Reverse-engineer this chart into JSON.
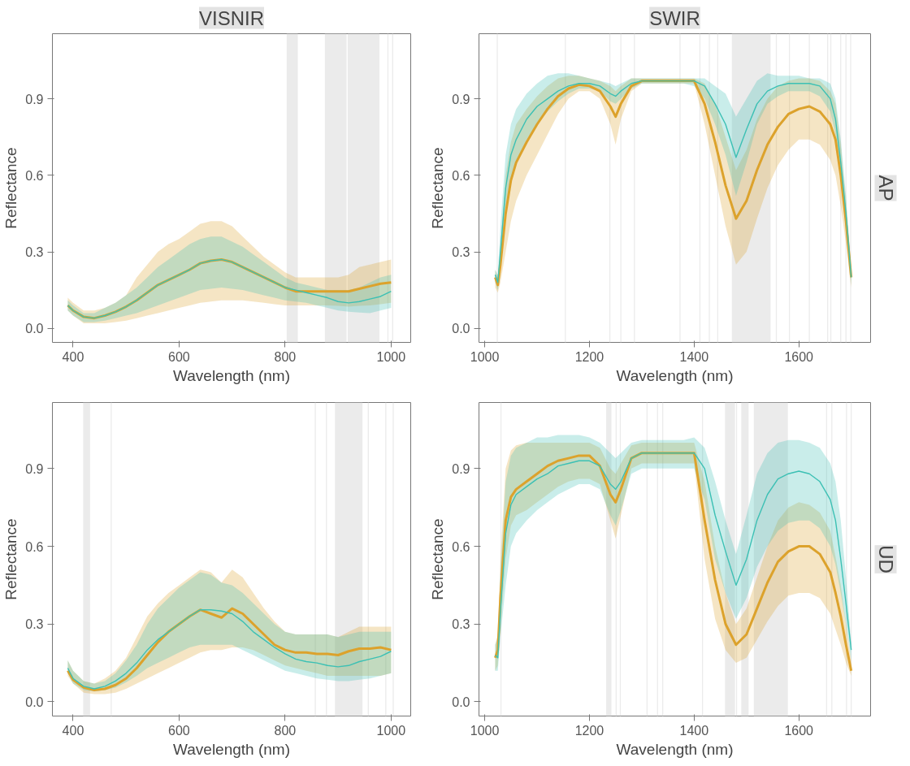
{
  "chart_data": [
    {
      "type": "line",
      "title": "VISNIR",
      "xlabel": "Wavelength (nm)",
      "ylabel": "Reflectance",
      "xlim": [
        361,
        1037
      ],
      "ylim": [
        -0.055,
        1.155
      ],
      "xticks": [
        400,
        600,
        800,
        1000
      ],
      "yticks": [
        {
          "value": 0,
          "label": "0.0"
        },
        {
          "value": 0.3,
          "label": "0.3"
        },
        {
          "value": 0.6,
          "label": "0.6"
        },
        {
          "value": 0.9,
          "label": "0.9"
        }
      ],
      "x": [
        390,
        400,
        420,
        440,
        460,
        480,
        500,
        520,
        540,
        560,
        580,
        600,
        620,
        640,
        660,
        680,
        700,
        720,
        740,
        760,
        780,
        800,
        820,
        840,
        860,
        880,
        900,
        920,
        940,
        960,
        980,
        1000
      ],
      "series": [
        {
          "color": "#dca22c",
          "values": [
            0.09,
            0.07,
            0.045,
            0.04,
            0.05,
            0.065,
            0.085,
            0.11,
            0.14,
            0.17,
            0.19,
            0.21,
            0.23,
            0.255,
            0.265,
            0.27,
            0.26,
            0.24,
            0.22,
            0.2,
            0.18,
            0.16,
            0.145,
            0.145,
            0.145,
            0.145,
            0.145,
            0.145,
            0.155,
            0.165,
            0.175,
            0.18
          ],
          "lower": [
            0.07,
            0.05,
            0.02,
            0.02,
            0.02,
            0.025,
            0.03,
            0.04,
            0.05,
            0.06,
            0.07,
            0.08,
            0.09,
            0.1,
            0.105,
            0.11,
            0.11,
            0.11,
            0.105,
            0.1,
            0.095,
            0.09,
            0.09,
            0.09,
            0.09,
            0.09,
            0.088,
            0.085,
            0.088,
            0.09,
            0.095,
            0.1
          ],
          "upper": [
            0.12,
            0.1,
            0.07,
            0.07,
            0.08,
            0.1,
            0.13,
            0.2,
            0.25,
            0.3,
            0.33,
            0.35,
            0.38,
            0.41,
            0.42,
            0.42,
            0.4,
            0.36,
            0.32,
            0.28,
            0.25,
            0.22,
            0.2,
            0.2,
            0.2,
            0.2,
            0.2,
            0.21,
            0.24,
            0.25,
            0.26,
            0.27
          ]
        },
        {
          "color": "#3cc0b4",
          "values": [
            0.09,
            0.07,
            0.045,
            0.04,
            0.05,
            0.065,
            0.085,
            0.11,
            0.14,
            0.17,
            0.19,
            0.21,
            0.23,
            0.255,
            0.265,
            0.27,
            0.26,
            0.24,
            0.22,
            0.2,
            0.18,
            0.16,
            0.15,
            0.14,
            0.13,
            0.12,
            0.105,
            0.1,
            0.105,
            0.115,
            0.125,
            0.145
          ],
          "lower": [
            0.07,
            0.05,
            0.025,
            0.025,
            0.03,
            0.04,
            0.05,
            0.06,
            0.075,
            0.09,
            0.105,
            0.12,
            0.135,
            0.15,
            0.155,
            0.16,
            0.155,
            0.15,
            0.14,
            0.13,
            0.12,
            0.11,
            0.105,
            0.1,
            0.09,
            0.08,
            0.07,
            0.065,
            0.062,
            0.06,
            0.07,
            0.08
          ],
          "upper": [
            0.11,
            0.09,
            0.06,
            0.06,
            0.08,
            0.1,
            0.13,
            0.16,
            0.2,
            0.24,
            0.27,
            0.3,
            0.33,
            0.35,
            0.36,
            0.36,
            0.34,
            0.32,
            0.29,
            0.26,
            0.23,
            0.2,
            0.18,
            0.17,
            0.16,
            0.15,
            0.15,
            0.15,
            0.16,
            0.18,
            0.2,
            0.21
          ]
        }
      ],
      "bands": [
        {
          "axis": "x",
          "from": 803,
          "to": 824
        },
        {
          "axis": "x",
          "from": 875,
          "to": 916
        },
        {
          "axis": "x",
          "from": 918,
          "to": 978
        },
        {
          "axis": "x",
          "from": 993,
          "to": 995
        },
        {
          "axis": "x",
          "from": 1002,
          "to": 1004
        }
      ]
    },
    {
      "type": "line",
      "title": "SWIR",
      "annotations": [
        "AP"
      ],
      "xlabel": "Wavelength (nm)",
      "ylabel": "Reflectance",
      "xlim": [
        989,
        1737
      ],
      "ylim": [
        -0.055,
        1.155
      ],
      "xticks": [
        1000,
        1200,
        1400,
        1600
      ],
      "yticks": [
        {
          "value": 0,
          "label": "0.0"
        },
        {
          "value": 0.3,
          "label": "0.3"
        },
        {
          "value": 0.6,
          "label": "0.6"
        },
        {
          "value": 0.9,
          "label": "0.9"
        }
      ],
      "x": [
        1020,
        1025,
        1030,
        1040,
        1050,
        1060,
        1080,
        1100,
        1120,
        1140,
        1160,
        1180,
        1200,
        1220,
        1240,
        1250,
        1260,
        1280,
        1300,
        1340,
        1380,
        1400,
        1420,
        1440,
        1460,
        1480,
        1500,
        1520,
        1540,
        1560,
        1580,
        1600,
        1620,
        1640,
        1660,
        1670,
        1680,
        1690,
        1700
      ],
      "series": [
        {
          "color": "#dca22c",
          "values": [
            0.2,
            0.17,
            0.25,
            0.45,
            0.58,
            0.65,
            0.73,
            0.8,
            0.86,
            0.91,
            0.94,
            0.955,
            0.95,
            0.93,
            0.87,
            0.83,
            0.88,
            0.95,
            0.97,
            0.97,
            0.97,
            0.97,
            0.88,
            0.73,
            0.56,
            0.43,
            0.5,
            0.62,
            0.72,
            0.79,
            0.84,
            0.86,
            0.87,
            0.85,
            0.8,
            0.74,
            0.6,
            0.42,
            0.2
          ],
          "lower": [
            0.16,
            0.14,
            0.18,
            0.3,
            0.42,
            0.5,
            0.6,
            0.68,
            0.76,
            0.84,
            0.9,
            0.93,
            0.93,
            0.9,
            0.8,
            0.72,
            0.82,
            0.93,
            0.96,
            0.96,
            0.96,
            0.96,
            0.8,
            0.6,
            0.4,
            0.25,
            0.3,
            0.43,
            0.55,
            0.64,
            0.7,
            0.74,
            0.74,
            0.72,
            0.66,
            0.6,
            0.48,
            0.33,
            0.16
          ],
          "upper": [
            0.23,
            0.2,
            0.32,
            0.6,
            0.73,
            0.8,
            0.86,
            0.91,
            0.95,
            0.98,
            0.99,
            0.99,
            0.98,
            0.97,
            0.95,
            0.93,
            0.95,
            0.98,
            0.98,
            0.98,
            0.98,
            0.98,
            0.96,
            0.88,
            0.75,
            0.62,
            0.7,
            0.82,
            0.9,
            0.95,
            0.97,
            0.98,
            0.98,
            0.97,
            0.93,
            0.88,
            0.72,
            0.5,
            0.23
          ]
        },
        {
          "color": "#3cc0b4",
          "values": [
            0.21,
            0.18,
            0.3,
            0.55,
            0.68,
            0.74,
            0.82,
            0.87,
            0.9,
            0.93,
            0.95,
            0.96,
            0.96,
            0.95,
            0.92,
            0.91,
            0.93,
            0.96,
            0.97,
            0.97,
            0.97,
            0.97,
            0.95,
            0.88,
            0.8,
            0.67,
            0.78,
            0.88,
            0.93,
            0.95,
            0.96,
            0.96,
            0.96,
            0.95,
            0.9,
            0.82,
            0.65,
            0.45,
            0.2
          ],
          "lower": [
            0.18,
            0.15,
            0.22,
            0.45,
            0.58,
            0.65,
            0.74,
            0.8,
            0.85,
            0.89,
            0.92,
            0.94,
            0.94,
            0.93,
            0.89,
            0.88,
            0.9,
            0.94,
            0.96,
            0.96,
            0.96,
            0.95,
            0.9,
            0.8,
            0.68,
            0.52,
            0.65,
            0.8,
            0.88,
            0.91,
            0.93,
            0.93,
            0.93,
            0.91,
            0.85,
            0.76,
            0.58,
            0.38,
            0.17
          ],
          "upper": [
            0.23,
            0.21,
            0.4,
            0.68,
            0.8,
            0.86,
            0.92,
            0.96,
            0.99,
            1.0,
            1.0,
            0.99,
            0.98,
            0.97,
            0.96,
            0.95,
            0.96,
            0.98,
            0.98,
            0.98,
            0.98,
            0.98,
            0.98,
            0.95,
            0.92,
            0.83,
            0.9,
            0.97,
            1.0,
            0.99,
            0.99,
            0.99,
            0.98,
            0.98,
            0.96,
            0.9,
            0.74,
            0.52,
            0.23
          ]
        }
      ],
      "bands": [
        {
          "axis": "x",
          "from": 1023,
          "to": 1025
        },
        {
          "axis": "x",
          "from": 1153,
          "to": 1155
        },
        {
          "axis": "x",
          "from": 1238,
          "to": 1240
        },
        {
          "axis": "x",
          "from": 1259,
          "to": 1261
        },
        {
          "axis": "x",
          "from": 1285,
          "to": 1287
        },
        {
          "axis": "x",
          "from": 1372,
          "to": 1374
        },
        {
          "axis": "x",
          "from": 1410,
          "to": 1412
        },
        {
          "axis": "x",
          "from": 1428,
          "to": 1430
        },
        {
          "axis": "x",
          "from": 1444,
          "to": 1446
        },
        {
          "axis": "x",
          "from": 1472,
          "to": 1546
        },
        {
          "axis": "x",
          "from": 1556,
          "to": 1558
        },
        {
          "axis": "x",
          "from": 1581,
          "to": 1583
        },
        {
          "axis": "x",
          "from": 1619,
          "to": 1621
        },
        {
          "axis": "x",
          "from": 1654,
          "to": 1656
        },
        {
          "axis": "x",
          "from": 1660,
          "to": 1662
        },
        {
          "axis": "x",
          "from": 1679,
          "to": 1681
        },
        {
          "axis": "x",
          "from": 1689,
          "to": 1691
        },
        {
          "axis": "x",
          "from": 1698,
          "to": 1700
        }
      ]
    },
    {
      "type": "line",
      "xlabel": "Wavelength (nm)",
      "ylabel": "Reflectance",
      "xlim": [
        361,
        1037
      ],
      "ylim": [
        -0.055,
        1.155
      ],
      "xticks": [
        400,
        600,
        800,
        1000
      ],
      "yticks": [
        {
          "value": 0,
          "label": "0.0"
        },
        {
          "value": 0.3,
          "label": "0.3"
        },
        {
          "value": 0.6,
          "label": "0.6"
        },
        {
          "value": 0.9,
          "label": "0.9"
        }
      ],
      "x": [
        390,
        400,
        420,
        440,
        460,
        480,
        500,
        520,
        540,
        560,
        580,
        600,
        620,
        640,
        660,
        680,
        700,
        720,
        740,
        760,
        780,
        800,
        820,
        840,
        860,
        880,
        900,
        920,
        940,
        960,
        980,
        1000
      ],
      "series": [
        {
          "color": "#dca22c",
          "values": [
            0.12,
            0.085,
            0.055,
            0.045,
            0.05,
            0.065,
            0.09,
            0.13,
            0.18,
            0.23,
            0.27,
            0.3,
            0.33,
            0.355,
            0.34,
            0.325,
            0.36,
            0.34,
            0.3,
            0.26,
            0.22,
            0.2,
            0.19,
            0.19,
            0.185,
            0.185,
            0.18,
            0.195,
            0.205,
            0.205,
            0.21,
            0.2
          ],
          "lower": [
            0.1,
            0.07,
            0.035,
            0.03,
            0.03,
            0.035,
            0.05,
            0.07,
            0.09,
            0.11,
            0.13,
            0.15,
            0.17,
            0.19,
            0.2,
            0.2,
            0.21,
            0.21,
            0.2,
            0.18,
            0.16,
            0.14,
            0.13,
            0.12,
            0.11,
            0.1,
            0.1,
            0.1,
            0.1,
            0.1,
            0.1,
            0.11
          ],
          "upper": [
            0.16,
            0.12,
            0.08,
            0.07,
            0.09,
            0.12,
            0.17,
            0.25,
            0.33,
            0.38,
            0.42,
            0.45,
            0.48,
            0.51,
            0.5,
            0.46,
            0.51,
            0.48,
            0.42,
            0.36,
            0.31,
            0.27,
            0.26,
            0.26,
            0.26,
            0.26,
            0.25,
            0.27,
            0.29,
            0.29,
            0.29,
            0.29
          ]
        },
        {
          "color": "#3cc0b4",
          "values": [
            0.13,
            0.09,
            0.06,
            0.05,
            0.06,
            0.08,
            0.11,
            0.15,
            0.2,
            0.24,
            0.27,
            0.3,
            0.33,
            0.355,
            0.355,
            0.35,
            0.34,
            0.31,
            0.27,
            0.24,
            0.21,
            0.185,
            0.165,
            0.155,
            0.15,
            0.14,
            0.135,
            0.14,
            0.155,
            0.165,
            0.175,
            0.195
          ],
          "lower": [
            0.11,
            0.07,
            0.045,
            0.04,
            0.045,
            0.055,
            0.075,
            0.1,
            0.13,
            0.15,
            0.17,
            0.19,
            0.21,
            0.22,
            0.22,
            0.22,
            0.22,
            0.2,
            0.18,
            0.16,
            0.14,
            0.12,
            0.11,
            0.1,
            0.09,
            0.085,
            0.08,
            0.08,
            0.085,
            0.09,
            0.1,
            0.11
          ],
          "upper": [
            0.16,
            0.12,
            0.08,
            0.07,
            0.08,
            0.11,
            0.16,
            0.22,
            0.3,
            0.36,
            0.4,
            0.44,
            0.47,
            0.5,
            0.49,
            0.46,
            0.45,
            0.42,
            0.38,
            0.34,
            0.3,
            0.27,
            0.26,
            0.26,
            0.26,
            0.26,
            0.25,
            0.26,
            0.27,
            0.27,
            0.27,
            0.27
          ]
        }
      ],
      "bands": [
        {
          "axis": "x",
          "from": 419,
          "to": 432
        },
        {
          "axis": "x",
          "from": 471,
          "to": 473
        },
        {
          "axis": "x",
          "from": 856,
          "to": 858
        },
        {
          "axis": "x",
          "from": 877,
          "to": 879
        },
        {
          "axis": "x",
          "from": 894,
          "to": 946
        },
        {
          "axis": "x",
          "from": 956,
          "to": 958
        },
        {
          "axis": "x",
          "from": 989,
          "to": 991
        },
        {
          "axis": "x",
          "from": 1003,
          "to": 1005
        }
      ]
    },
    {
      "type": "line",
      "annotations": [
        "UD"
      ],
      "xlabel": "Wavelength (nm)",
      "ylabel": "Reflectance",
      "xlim": [
        989,
        1737
      ],
      "ylim": [
        -0.055,
        1.155
      ],
      "xticks": [
        1000,
        1200,
        1400,
        1600
      ],
      "yticks": [
        {
          "value": 0,
          "label": "0.0"
        },
        {
          "value": 0.3,
          "label": "0.3"
        },
        {
          "value": 0.6,
          "label": "0.6"
        },
        {
          "value": 0.9,
          "label": "0.9"
        }
      ],
      "x": [
        1020,
        1025,
        1030,
        1040,
        1050,
        1060,
        1080,
        1100,
        1120,
        1140,
        1160,
        1180,
        1200,
        1220,
        1240,
        1250,
        1260,
        1280,
        1300,
        1340,
        1380,
        1400,
        1420,
        1440,
        1460,
        1480,
        1500,
        1520,
        1540,
        1560,
        1580,
        1600,
        1620,
        1640,
        1660,
        1670,
        1680,
        1690,
        1700
      ],
      "series": [
        {
          "color": "#dca22c",
          "values": [
            0.17,
            0.2,
            0.4,
            0.7,
            0.79,
            0.82,
            0.85,
            0.88,
            0.91,
            0.93,
            0.94,
            0.95,
            0.95,
            0.91,
            0.8,
            0.77,
            0.82,
            0.94,
            0.96,
            0.96,
            0.96,
            0.96,
            0.7,
            0.47,
            0.3,
            0.22,
            0.26,
            0.36,
            0.46,
            0.54,
            0.58,
            0.6,
            0.6,
            0.57,
            0.5,
            0.42,
            0.33,
            0.22,
            0.12
          ],
          "lower": [
            0.12,
            0.14,
            0.28,
            0.55,
            0.68,
            0.72,
            0.74,
            0.77,
            0.8,
            0.83,
            0.85,
            0.86,
            0.86,
            0.84,
            0.7,
            0.63,
            0.72,
            0.9,
            0.92,
            0.92,
            0.92,
            0.92,
            0.55,
            0.32,
            0.2,
            0.15,
            0.17,
            0.24,
            0.31,
            0.37,
            0.41,
            0.42,
            0.42,
            0.4,
            0.34,
            0.28,
            0.22,
            0.15,
            0.1
          ],
          "upper": [
            0.22,
            0.26,
            0.55,
            0.9,
            0.97,
            0.99,
            1.0,
            1.0,
            1.0,
            1.0,
            1.0,
            1.0,
            1.0,
            0.98,
            0.9,
            0.88,
            0.92,
            0.99,
            1.0,
            1.0,
            1.0,
            1.0,
            0.85,
            0.6,
            0.42,
            0.3,
            0.36,
            0.48,
            0.6,
            0.7,
            0.75,
            0.77,
            0.76,
            0.73,
            0.66,
            0.56,
            0.45,
            0.3,
            0.16
          ]
        },
        {
          "color": "#3cc0b4",
          "values": [
            0.18,
            0.17,
            0.35,
            0.65,
            0.76,
            0.8,
            0.83,
            0.86,
            0.88,
            0.91,
            0.92,
            0.93,
            0.93,
            0.91,
            0.84,
            0.82,
            0.85,
            0.94,
            0.96,
            0.96,
            0.96,
            0.96,
            0.9,
            0.72,
            0.58,
            0.45,
            0.55,
            0.7,
            0.8,
            0.86,
            0.88,
            0.89,
            0.88,
            0.85,
            0.78,
            0.7,
            0.55,
            0.38,
            0.2
          ],
          "lower": [
            0.12,
            0.12,
            0.25,
            0.45,
            0.6,
            0.65,
            0.7,
            0.74,
            0.77,
            0.8,
            0.82,
            0.84,
            0.84,
            0.82,
            0.72,
            0.68,
            0.74,
            0.88,
            0.9,
            0.9,
            0.9,
            0.9,
            0.78,
            0.55,
            0.42,
            0.32,
            0.4,
            0.52,
            0.6,
            0.66,
            0.69,
            0.7,
            0.7,
            0.67,
            0.6,
            0.53,
            0.42,
            0.3,
            0.16
          ],
          "upper": [
            0.22,
            0.25,
            0.5,
            0.85,
            0.95,
            0.98,
            1.0,
            1.02,
            1.02,
            1.03,
            1.03,
            1.03,
            1.02,
            1.0,
            0.96,
            0.94,
            0.96,
            1.0,
            1.01,
            1.01,
            1.01,
            1.02,
            0.98,
            0.85,
            0.7,
            0.57,
            0.72,
            0.88,
            0.96,
            1.0,
            1.01,
            1.01,
            1.0,
            0.98,
            0.92,
            0.85,
            0.7,
            0.48,
            0.23
          ]
        }
      ],
      "bands": [
        {
          "axis": "x",
          "from": 1030,
          "to": 1032
        },
        {
          "axis": "x",
          "from": 1232,
          "to": 1242
        },
        {
          "axis": "x",
          "from": 1250,
          "to": 1252
        },
        {
          "axis": "x",
          "from": 1258,
          "to": 1260
        },
        {
          "axis": "x",
          "from": 1309,
          "to": 1311
        },
        {
          "axis": "x",
          "from": 1329,
          "to": 1331
        },
        {
          "axis": "x",
          "from": 1339,
          "to": 1341
        },
        {
          "axis": "x",
          "from": 1415,
          "to": 1417
        },
        {
          "axis": "x",
          "from": 1459,
          "to": 1478
        },
        {
          "axis": "x",
          "from": 1480,
          "to": 1482
        },
        {
          "axis": "x",
          "from": 1490,
          "to": 1504
        },
        {
          "axis": "x",
          "from": 1514,
          "to": 1579
        },
        {
          "axis": "x",
          "from": 1652,
          "to": 1654
        },
        {
          "axis": "x",
          "from": 1662,
          "to": 1664
        },
        {
          "axis": "x",
          "from": 1690,
          "to": 1692
        },
        {
          "axis": "x",
          "from": 1699,
          "to": 1701
        }
      ]
    }
  ]
}
